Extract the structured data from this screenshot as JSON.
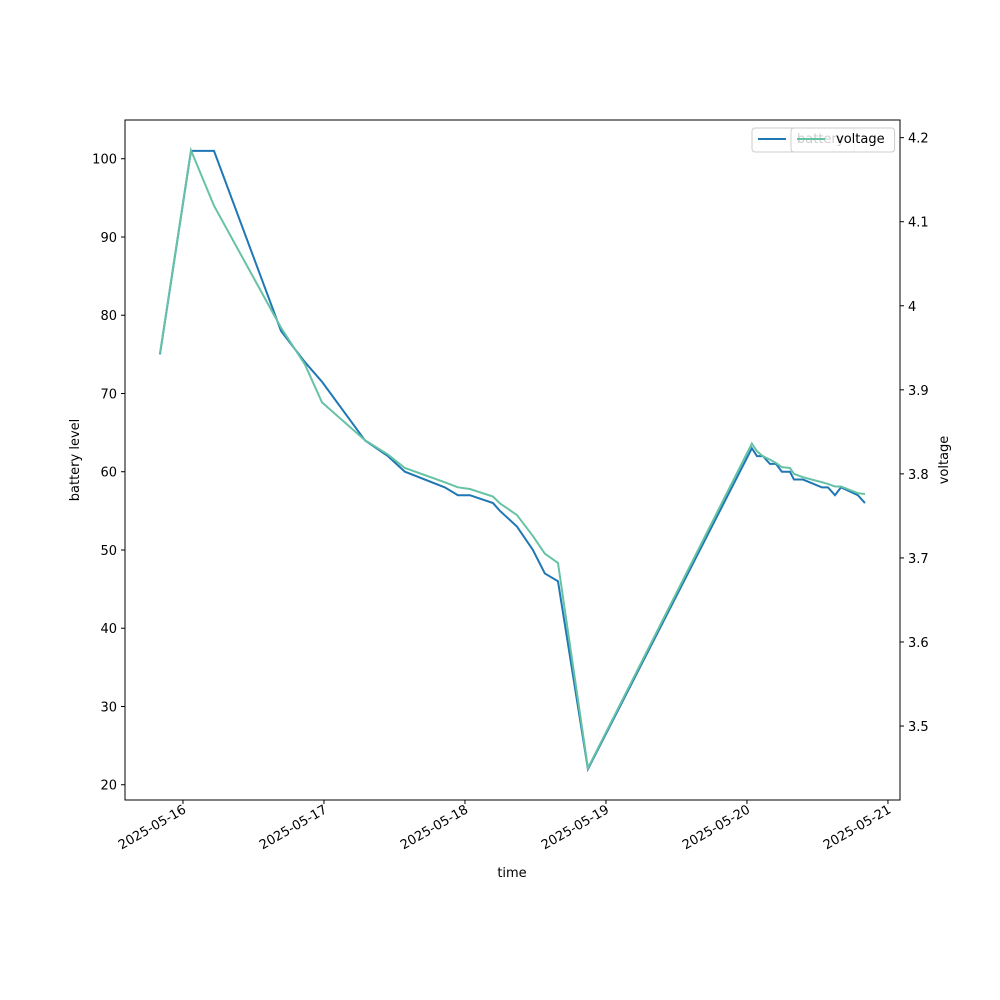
{
  "chart_data": {
    "type": "line",
    "x": [
      "2025-05-15T20:05",
      "2025-05-16T01:22",
      "2025-05-16T05:17",
      "2025-05-16T16:41",
      "2025-05-16T20:46",
      "2025-05-16T23:40",
      "2025-05-17T06:59",
      "2025-05-17T10:53",
      "2025-05-17T13:47",
      "2025-05-17T20:35",
      "2025-05-17T22:48",
      "2025-05-18T00:50",
      "2025-05-18T04:46",
      "2025-05-18T05:57",
      "2025-05-18T08:51",
      "2025-05-18T11:34",
      "2025-05-18T13:36",
      "2025-05-18T15:50",
      "2025-05-18T20:56",
      "2025-05-20T00:50",
      "2025-05-20T01:42",
      "2025-05-20T02:43",
      "2025-05-20T03:55",
      "2025-05-20T04:57",
      "2025-05-20T05:57",
      "2025-05-20T07:19",
      "2025-05-20T08:00",
      "2025-05-20T09:32",
      "2025-05-20T12:46",
      "2025-05-20T13:47",
      "2025-05-20T14:59",
      "2025-05-20T16:00",
      "2025-05-20T18:53",
      "2025-05-20T20:05"
    ],
    "series": [
      {
        "name": "battery",
        "color": "#1f77b4",
        "axis": "y",
        "values": [
          75,
          101,
          101,
          78,
          74,
          71.5,
          64,
          62,
          60,
          58,
          57,
          57,
          56,
          55,
          53,
          50,
          47,
          46,
          22,
          63,
          62,
          62,
          61,
          61,
          60,
          60,
          59,
          59,
          58,
          58,
          57,
          58,
          57,
          56
        ]
      },
      {
        "name": "voltage",
        "color": "#66c2a5",
        "axis": "y2",
        "values": [
          3.943,
          4.185,
          4.119,
          3.974,
          3.93,
          3.885,
          3.84,
          3.823,
          3.807,
          3.79,
          3.784,
          3.782,
          3.773,
          3.765,
          3.751,
          3.726,
          3.705,
          3.694,
          3.45,
          3.836,
          3.827,
          3.821,
          3.817,
          3.813,
          3.808,
          3.807,
          3.8,
          3.796,
          3.79,
          3.788,
          3.785,
          3.785,
          3.777,
          3.776
        ]
      }
    ],
    "xlabel": "time",
    "ylabel": "battery level",
    "y2label": "voltage",
    "xlim": [
      "2025-05-15T14:08",
      "2025-05-21T02:03"
    ],
    "xticks": [
      "2025-05-16",
      "2025-05-17",
      "2025-05-18",
      "2025-05-19",
      "2025-05-20",
      "2025-05-21"
    ],
    "ylim": [
      18.05,
      104.95
    ],
    "yticks": [
      20,
      30,
      40,
      50,
      60,
      70,
      80,
      90,
      100
    ],
    "y2lim": [
      3.412,
      4.221
    ],
    "y2ticks": [
      3.5,
      3.6,
      3.7,
      3.8,
      3.9,
      4.0,
      4.1,
      4.2
    ]
  }
}
